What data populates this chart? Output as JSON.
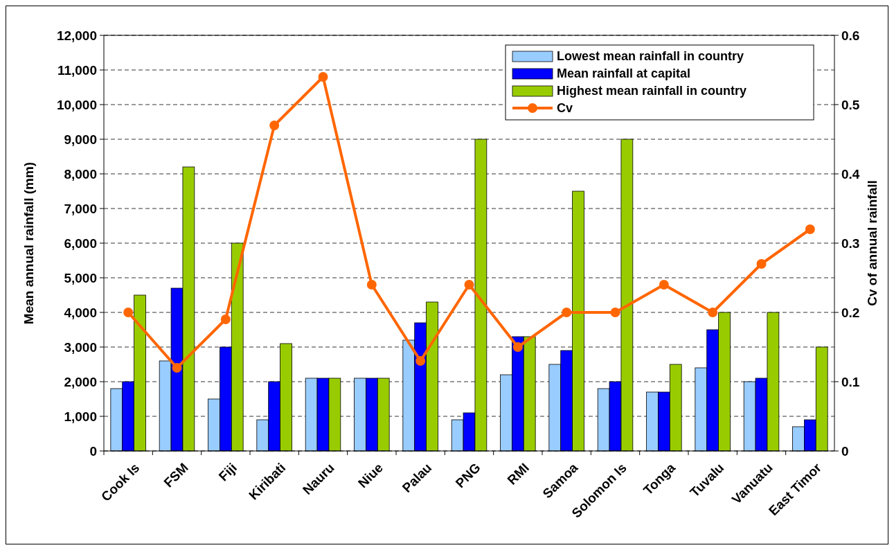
{
  "chart_data": {
    "type": "bar",
    "categories": [
      "Cook Is",
      "FSM",
      "Fiji",
      "Kiribati",
      "Nauru",
      "Niue",
      "Palau",
      "PNG",
      "RMI",
      "Samoa",
      "Solomon Is",
      "Tonga",
      "Tuvalu",
      "Vanuatu",
      "East Timor"
    ],
    "ylabel": "Mean annual rainfall (mm)",
    "y2label": "Cv of annual rainfall",
    "ylim": [
      0,
      12000
    ],
    "yticks": [
      {
        "value": 0,
        "label": "0"
      },
      {
        "value": 1000,
        "label": "1,000"
      },
      {
        "value": 2000,
        "label": "2,000"
      },
      {
        "value": 3000,
        "label": "3,000"
      },
      {
        "value": 4000,
        "label": "4,000"
      },
      {
        "value": 5000,
        "label": "5,000"
      },
      {
        "value": 6000,
        "label": "6,000"
      },
      {
        "value": 7000,
        "label": "7,000"
      },
      {
        "value": 8000,
        "label": "8,000"
      },
      {
        "value": 9000,
        "label": "9,000"
      },
      {
        "value": 10000,
        "label": "10,000"
      },
      {
        "value": 11000,
        "label": "11,000"
      },
      {
        "value": 12000,
        "label": "12,000"
      }
    ],
    "y2lim": [
      0,
      0.6
    ],
    "y2ticks": [
      0,
      0.1,
      0.2,
      0.3,
      0.4,
      0.5,
      0.6
    ],
    "grid": "y",
    "legend": "top right",
    "marker": "circle",
    "series": [
      {
        "name": "Lowest mean rainfall in country",
        "color": "#99ccff",
        "values": [
          1800,
          2600,
          1500,
          900,
          2100,
          2100,
          3200,
          900,
          2200,
          2500,
          1800,
          1700,
          2400,
          2000,
          700
        ]
      },
      {
        "name": "Mean rainfall at capital",
        "color": "#0000ff",
        "values": [
          2000,
          4700,
          3000,
          2000,
          2100,
          2100,
          3700,
          1100,
          3300,
          2900,
          2000,
          1700,
          3500,
          2100,
          900
        ]
      },
      {
        "name": "Highest mean rainfall in country",
        "color": "#99cc00",
        "values": [
          4500,
          8200,
          6000,
          3100,
          2100,
          2100,
          4300,
          9000,
          3300,
          7500,
          9000,
          2500,
          4000,
          4000,
          3000
        ]
      },
      {
        "name": "Cv",
        "type": "line",
        "axis": "y2",
        "color": "#ff6600",
        "values": [
          0.2,
          0.12,
          0.19,
          0.47,
          0.54,
          0.24,
          0.13,
          0.24,
          0.15,
          0.2,
          0.2,
          0.24,
          0.2,
          0.27,
          0.32
        ]
      }
    ]
  }
}
